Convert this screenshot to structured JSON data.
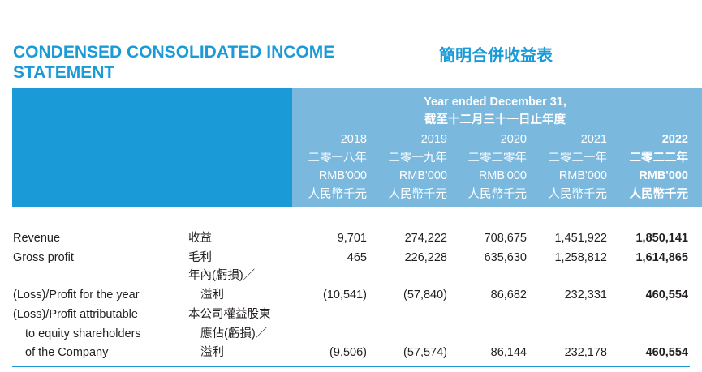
{
  "title_en": "CONDENSED CONSOLIDATED INCOME STATEMENT",
  "title_zh": "簡明合併收益表",
  "header": {
    "period_en": "Year ended December 31,",
    "period_zh": "截至十二月三十一日止年度",
    "columns": [
      {
        "year": "2018",
        "year_zh": "二零一八年",
        "unit": "RMB'000",
        "unit_zh": "人民幣千元"
      },
      {
        "year": "2019",
        "year_zh": "二零一九年",
        "unit": "RMB'000",
        "unit_zh": "人民幣千元"
      },
      {
        "year": "2020",
        "year_zh": "二零二零年",
        "unit": "RMB'000",
        "unit_zh": "人民幣千元"
      },
      {
        "year": "2021",
        "year_zh": "二零二一年",
        "unit": "RMB'000",
        "unit_zh": "人民幣千元"
      },
      {
        "year": "2022",
        "year_zh": "二零二二年",
        "unit": "RMB'000",
        "unit_zh": "人民幣千元"
      }
    ]
  },
  "rows": [
    {
      "label_en": [
        "Revenue"
      ],
      "label_zh": [
        "收益"
      ],
      "values": [
        "9,701",
        "274,222",
        "708,675",
        "1,451,922",
        "1,850,141"
      ]
    },
    {
      "label_en": [
        "Gross profit"
      ],
      "label_zh": [
        "毛利"
      ],
      "values": [
        "465",
        "226,228",
        "635,630",
        "1,258,812",
        "1,614,865"
      ]
    },
    {
      "label_en": [
        "(Loss)/Profit for the year"
      ],
      "label_zh": [
        "年內(虧損)／",
        "溢利"
      ],
      "values": [
        "(10,541)",
        "(57,840)",
        "86,682",
        "232,331",
        "460,554"
      ]
    },
    {
      "label_en": [
        "(Loss)/Profit attributable",
        "to equity shareholders",
        "of the Company"
      ],
      "label_zh": [
        "本公司權益股東",
        "應佔(虧損)／",
        "溢利"
      ],
      "values": [
        "(9,506)",
        "(57,574)",
        "86,144",
        "232,178",
        "460,554"
      ]
    }
  ]
}
